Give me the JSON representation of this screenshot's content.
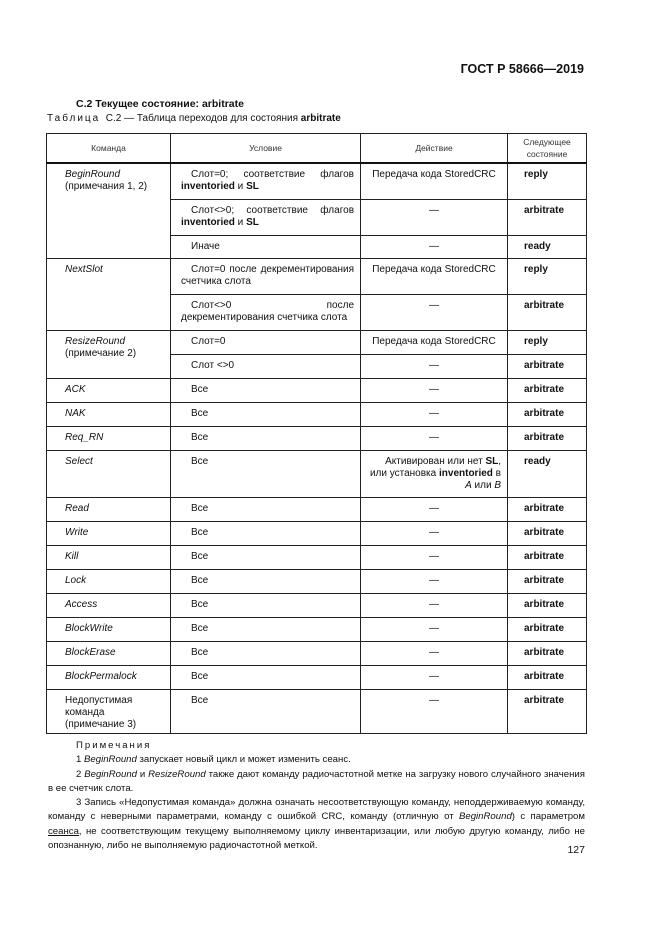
{
  "header": {
    "standard": "ГОСТ Р 58666—2019"
  },
  "section_title": "С.2 Текущее состояние: arbitrate",
  "caption": {
    "prefix": "Таблица",
    "number": "С.2 — Таблица переходов для состояния",
    "state": "arbitrate"
  },
  "table": {
    "columns": [
      "Команда",
      "Условие",
      "Действие",
      "Следующее состояние"
    ],
    "groups": [
      {
        "command": "BeginRound",
        "command_suffix": " (примечания 1, 2)",
        "rows": [
          {
            "condition": "Слот=0; соответствие флагов ",
            "cond_bold": [
              "inventoried",
              "SL"
            ],
            "action": "Передача кода StoredCRC",
            "next": "reply"
          },
          {
            "condition": "Слот<>0; соответствие флагов ",
            "cond_bold": [
              "inventoried",
              "SL"
            ],
            "action": "—",
            "next": "arbitrate"
          },
          {
            "condition": "Иначе",
            "action": "—",
            "next": "ready"
          }
        ]
      },
      {
        "command": "NextSlot",
        "rows": [
          {
            "condition": "Слот=0 после декрементирования счетчика слота",
            "action": "Передача кода StoredCRC",
            "next": "reply"
          },
          {
            "condition": "Слот<>0 после декрементирования счетчика слота",
            "action": "—",
            "next": "arbitrate"
          }
        ]
      },
      {
        "command": "ResizeRound",
        "command_suffix": " (примечание 2)",
        "rows": [
          {
            "condition": "Слот=0",
            "action": "Передача кода StoredCRC",
            "next": "reply"
          },
          {
            "condition": "Слот <>0",
            "action": "—",
            "next": "arbitrate"
          }
        ]
      },
      {
        "command": "ACK",
        "rows": [
          {
            "condition": "Все",
            "action": "—",
            "next": "arbitrate"
          }
        ]
      },
      {
        "command": "NAK",
        "rows": [
          {
            "condition": "Все",
            "action": "—",
            "next": "arbitrate"
          }
        ]
      },
      {
        "command": "Req_RN",
        "rows": [
          {
            "condition": "Все",
            "action": "—",
            "next": "arbitrate"
          }
        ]
      },
      {
        "command": "Select",
        "rows": [
          {
            "condition": "Все",
            "action": "Активирован или нет SL, или установка inventoried в A или B",
            "next": "ready"
          }
        ]
      },
      {
        "command": "Read",
        "rows": [
          {
            "condition": "Все",
            "action": "—",
            "next": "arbitrate"
          }
        ]
      },
      {
        "command": "Write",
        "rows": [
          {
            "condition": "Все",
            "action": "—",
            "next": "arbitrate"
          }
        ]
      },
      {
        "command": "Kill",
        "rows": [
          {
            "condition": "Все",
            "action": "—",
            "next": "arbitrate"
          }
        ]
      },
      {
        "command": "Lock",
        "rows": [
          {
            "condition": "Все",
            "action": "—",
            "next": "arbitrate"
          }
        ]
      },
      {
        "command": "Access",
        "rows": [
          {
            "condition": "Все",
            "action": "—",
            "next": "arbitrate"
          }
        ]
      },
      {
        "command": "BlockWrite",
        "rows": [
          {
            "condition": "Все",
            "action": "—",
            "next": "arbitrate"
          }
        ]
      },
      {
        "command": "BlockErase",
        "rows": [
          {
            "condition": "Все",
            "action": "—",
            "next": "arbitrate"
          }
        ]
      },
      {
        "command": "BlockPermalock",
        "rows": [
          {
            "condition": "Все",
            "action": "—",
            "next": "arbitrate"
          }
        ]
      },
      {
        "command_plain": "Недопустимая команда (примечание 3)",
        "rows": [
          {
            "condition": "Все",
            "action": "—",
            "next": "arbitrate"
          }
        ]
      }
    ]
  },
  "notes": {
    "title": "Примечания",
    "items": [
      "1 <i>BeginRound</i> запускает новый цикл и может изменить сеанс.",
      "2 <i>BeginRound</i> и <i>ResizeRound</i> также дают команду радиочастотной метке на загрузку нового случайного значения в ее счетчик слота.",
      "3 Запись «Недопустимая команда» должна означать несоответствующую команду, неподдерживаемую команду, команду с неверными параметрами, команду с ошибкой CRC, команду (отличную от <i>BeginRound</i>) с параметром <u>сеанса</u>, не соответствующим текущему выполняемому циклу инвентаризации, или любую другую команду, либо не опознанную, либо не выполняемую радиочастотной меткой."
    ]
  },
  "page_number": "127"
}
